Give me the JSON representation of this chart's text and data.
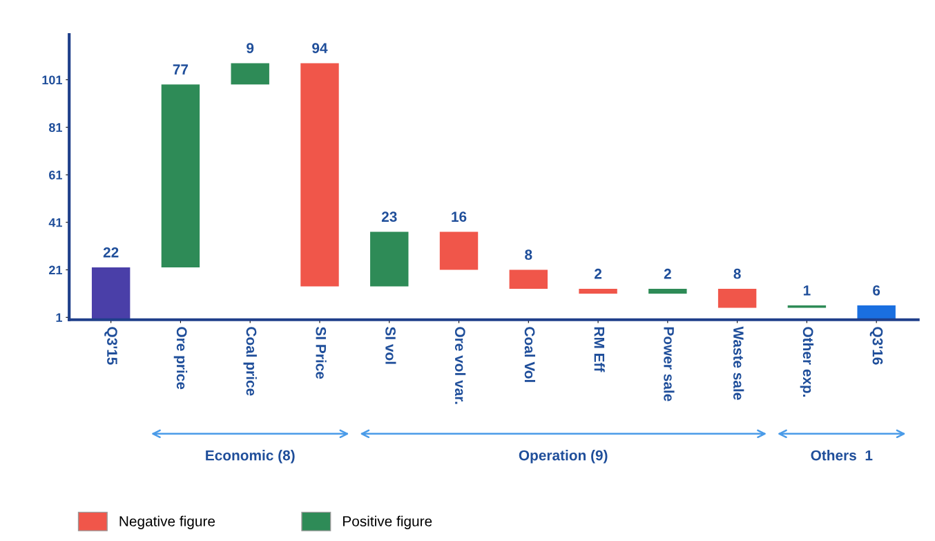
{
  "chart_data": {
    "type": "bar",
    "categories": [
      "Q3'15",
      "Ore price",
      "Coal price",
      "SI Price",
      "SI vol",
      "Ore vol var.",
      "Coal Vol",
      "RM Eff",
      "Power sale",
      "Waste sale",
      "Other exp.",
      "Q3'16"
    ],
    "series": [
      {
        "name": "Negative figure",
        "color": "#f0564a",
        "values": [
          null,
          null,
          null,
          94,
          null,
          16,
          8,
          2,
          null,
          8,
          null,
          null
        ],
        "base": [
          null,
          null,
          null,
          14,
          null,
          21,
          13,
          11,
          null,
          5,
          null,
          null
        ],
        "value_labels": [
          null,
          null,
          null,
          "94",
          null,
          "16",
          "8",
          "2",
          null,
          "8",
          null,
          null
        ]
      },
      {
        "name": "Positive figure",
        "color": "#2e8b57",
        "values": [
          null,
          77,
          9,
          null,
          23,
          null,
          null,
          null,
          2,
          null,
          1,
          null
        ],
        "base": [
          null,
          22,
          99,
          null,
          14,
          null,
          null,
          null,
          11,
          null,
          5,
          null
        ],
        "value_labels": [
          null,
          "77",
          "9",
          null,
          "23",
          null,
          null,
          null,
          "2",
          null,
          "1",
          null
        ]
      },
      {
        "colors": [
          "#4a3fa8",
          null,
          null,
          null,
          null,
          null,
          null,
          null,
          null,
          null,
          null,
          "#1a6fe0"
        ],
        "values": [
          22,
          null,
          null,
          null,
          null,
          null,
          null,
          null,
          null,
          null,
          null,
          6
        ],
        "base": [
          0,
          null,
          null,
          null,
          null,
          null,
          null,
          null,
          null,
          null,
          null,
          0
        ],
        "value_labels": [
          "22",
          null,
          null,
          null,
          null,
          null,
          null,
          null,
          null,
          null,
          null,
          "6"
        ]
      }
    ],
    "ylim": [
      0,
      120
    ],
    "yticks": [
      1,
      21,
      41,
      61,
      81,
      101
    ],
    "grid": false,
    "legend": "bottom left",
    "annotations": [
      "Economic (8)",
      "Operation (9)",
      "Others  1"
    ]
  }
}
